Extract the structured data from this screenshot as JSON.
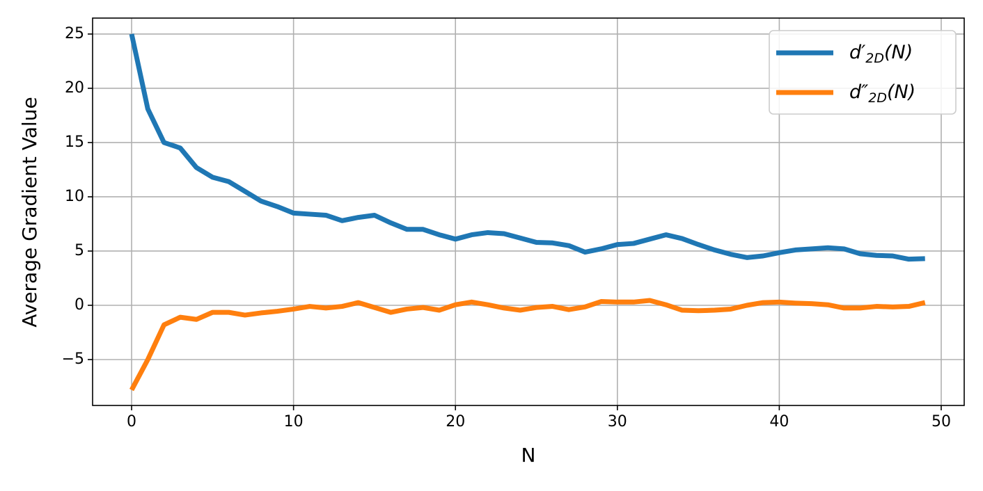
{
  "chart_data": {
    "type": "line",
    "x_label": "N",
    "y_label": "Average Gradient Value",
    "x": [
      0,
      1,
      2,
      3,
      4,
      5,
      6,
      7,
      8,
      9,
      10,
      11,
      12,
      13,
      14,
      15,
      16,
      17,
      18,
      19,
      20,
      21,
      22,
      23,
      24,
      25,
      26,
      27,
      28,
      29,
      30,
      31,
      32,
      33,
      34,
      35,
      36,
      37,
      38,
      39,
      40,
      41,
      42,
      43,
      44,
      45,
      46,
      47,
      48,
      49
    ],
    "series": [
      {
        "name": "d′2D(N)",
        "color": "#1f77b4",
        "values": [
          25.0,
          18.1,
          15.0,
          14.5,
          12.7,
          11.8,
          11.4,
          10.5,
          9.6,
          9.1,
          8.5,
          8.4,
          8.3,
          7.8,
          8.1,
          8.3,
          7.6,
          7.0,
          7.0,
          6.5,
          6.1,
          6.5,
          6.7,
          6.6,
          6.2,
          5.8,
          5.75,
          5.5,
          4.9,
          5.2,
          5.6,
          5.7,
          6.1,
          6.5,
          6.15,
          5.6,
          5.1,
          4.7,
          4.4,
          4.55,
          4.85,
          5.1,
          5.2,
          5.3,
          5.2,
          4.75,
          4.6,
          4.55,
          4.25,
          4.3
        ]
      },
      {
        "name": "d″2D(N)",
        "color": "#ff7f0e",
        "values": [
          -7.8,
          -5.0,
          -1.8,
          -1.1,
          -1.3,
          -0.65,
          -0.65,
          -0.9,
          -0.7,
          -0.55,
          -0.35,
          -0.1,
          -0.25,
          -0.1,
          0.25,
          -0.2,
          -0.65,
          -0.35,
          -0.2,
          -0.45,
          0.05,
          0.3,
          0.05,
          -0.25,
          -0.45,
          -0.2,
          -0.1,
          -0.4,
          -0.15,
          0.35,
          0.3,
          0.3,
          0.45,
          0.05,
          -0.45,
          -0.5,
          -0.45,
          -0.35,
          0,
          0.25,
          0.3,
          0.2,
          0.15,
          0.05,
          -0.25,
          -0.25,
          -0.1,
          -0.15,
          -0.1,
          0.25
        ]
      }
    ],
    "xlim": [
      -2.41,
      51.42
    ],
    "ylim": [
      -9.23,
      26.47
    ],
    "xticks": [
      0,
      10,
      20,
      30,
      40,
      50
    ],
    "yticks": [
      {
        "value": -5,
        "label": "−5"
      },
      0,
      5,
      10,
      15,
      20,
      25
    ],
    "grid": true,
    "legend": "upper right"
  }
}
